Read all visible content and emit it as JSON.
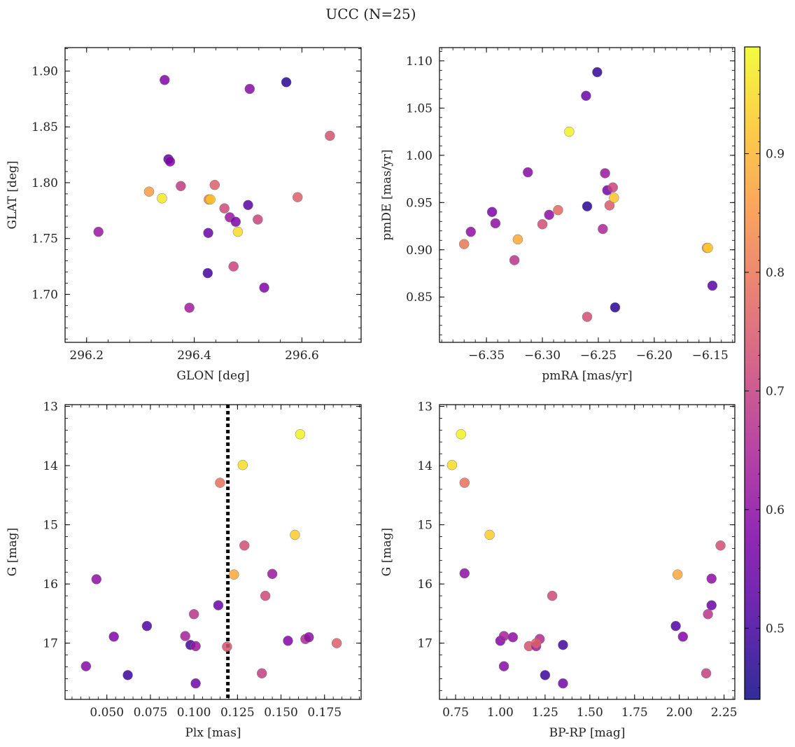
{
  "figure": {
    "title": "UCC (N=25)"
  },
  "colorbar": {
    "colormap": "plasma",
    "range": [
      0.44,
      0.99
    ],
    "ticks": [
      0.5,
      0.6,
      0.7,
      0.8,
      0.9
    ],
    "tick_labels": [
      "0.5",
      "0.6",
      "0.7",
      "0.8",
      "0.9"
    ]
  },
  "chart_data": [
    {
      "type": "scatter",
      "xlabel": "GLON [deg]",
      "ylabel": "GLAT [deg]",
      "xlim": [
        296.16,
        296.71
      ],
      "ylim": [
        1.657,
        1.921
      ],
      "xticks": [
        296.2,
        296.4,
        296.6
      ],
      "xtick_labels": [
        "296.2",
        "296.4",
        "296.6"
      ],
      "yticks": [
        1.7,
        1.75,
        1.8,
        1.85,
        1.9
      ],
      "ytick_labels": [
        "1.70",
        "1.75",
        "1.80",
        "1.85",
        "1.90"
      ],
      "y_inverted": false,
      "points": [
        {
          "x": 296.222,
          "y": 1.756,
          "c": 0.62
        },
        {
          "x": 296.345,
          "y": 1.892,
          "c": 0.58
        },
        {
          "x": 296.352,
          "y": 1.821,
          "c": 0.53
        },
        {
          "x": 296.355,
          "y": 1.819,
          "c": 0.58
        },
        {
          "x": 296.316,
          "y": 1.792,
          "c": 0.86
        },
        {
          "x": 296.34,
          "y": 1.786,
          "c": 0.97
        },
        {
          "x": 296.375,
          "y": 1.797,
          "c": 0.69
        },
        {
          "x": 296.427,
          "y": 1.785,
          "c": 0.82
        },
        {
          "x": 296.43,
          "y": 1.785,
          "c": 0.92
        },
        {
          "x": 296.438,
          "y": 1.798,
          "c": 0.76
        },
        {
          "x": 296.456,
          "y": 1.777,
          "c": 0.72
        },
        {
          "x": 296.466,
          "y": 1.769,
          "c": 0.62
        },
        {
          "x": 296.477,
          "y": 1.765,
          "c": 0.57
        },
        {
          "x": 296.481,
          "y": 1.756,
          "c": 0.95
        },
        {
          "x": 296.426,
          "y": 1.755,
          "c": 0.55
        },
        {
          "x": 296.425,
          "y": 1.719,
          "c": 0.5
        },
        {
          "x": 296.391,
          "y": 1.688,
          "c": 0.63
        },
        {
          "x": 296.473,
          "y": 1.725,
          "c": 0.71
        },
        {
          "x": 296.5,
          "y": 1.78,
          "c": 0.53
        },
        {
          "x": 296.503,
          "y": 1.884,
          "c": 0.59
        },
        {
          "x": 296.518,
          "y": 1.767,
          "c": 0.71
        },
        {
          "x": 296.53,
          "y": 1.706,
          "c": 0.58
        },
        {
          "x": 296.571,
          "y": 1.89,
          "c": 0.47
        },
        {
          "x": 296.592,
          "y": 1.787,
          "c": 0.76
        },
        {
          "x": 296.652,
          "y": 1.842,
          "c": 0.74
        }
      ]
    },
    {
      "type": "scatter",
      "xlabel": "pmRA [mas/yr]",
      "ylabel": "pmDE [mas/yr]",
      "xlim": [
        -6.392,
        -6.128
      ],
      "ylim": [
        0.802,
        1.114
      ],
      "xticks": [
        -6.35,
        -6.3,
        -6.25,
        -6.2,
        -6.15
      ],
      "xtick_labels": [
        "−6.35",
        "−6.30",
        "−6.25",
        "−6.20",
        "−6.15"
      ],
      "yticks": [
        0.85,
        0.9,
        0.95,
        1.0,
        1.05,
        1.1
      ],
      "ytick_labels": [
        "0.85",
        "0.90",
        "0.95",
        "1.00",
        "1.05",
        "1.10"
      ],
      "y_inverted": false,
      "points": [
        {
          "x": -6.37,
          "y": 0.906,
          "c": 0.8
        },
        {
          "x": -6.364,
          "y": 0.919,
          "c": 0.6
        },
        {
          "x": -6.345,
          "y": 0.94,
          "c": 0.57
        },
        {
          "x": -6.342,
          "y": 0.928,
          "c": 0.6
        },
        {
          "x": -6.325,
          "y": 0.889,
          "c": 0.68
        },
        {
          "x": -6.322,
          "y": 0.911,
          "c": 0.88
        },
        {
          "x": -6.313,
          "y": 0.982,
          "c": 0.59
        },
        {
          "x": -6.3,
          "y": 0.927,
          "c": 0.73
        },
        {
          "x": -6.294,
          "y": 0.937,
          "c": 0.6
        },
        {
          "x": -6.286,
          "y": 0.942,
          "c": 0.78
        },
        {
          "x": -6.276,
          "y": 1.025,
          "c": 0.98
        },
        {
          "x": -6.261,
          "y": 1.063,
          "c": 0.55
        },
        {
          "x": -6.26,
          "y": 0.946,
          "c": 0.47
        },
        {
          "x": -6.251,
          "y": 1.088,
          "c": 0.48
        },
        {
          "x": -6.246,
          "y": 0.922,
          "c": 0.65
        },
        {
          "x": -6.244,
          "y": 0.981,
          "c": 0.62
        },
        {
          "x": -6.242,
          "y": 0.963,
          "c": 0.56
        },
        {
          "x": -6.24,
          "y": 0.947,
          "c": 0.75
        },
        {
          "x": -6.237,
          "y": 0.966,
          "c": 0.71
        },
        {
          "x": -6.236,
          "y": 0.955,
          "c": 0.92
        },
        {
          "x": -6.235,
          "y": 0.839,
          "c": 0.47
        },
        {
          "x": -6.26,
          "y": 0.829,
          "c": 0.73
        },
        {
          "x": -6.153,
          "y": 0.902,
          "c": 0.86
        },
        {
          "x": -6.152,
          "y": 0.902,
          "c": 0.93
        },
        {
          "x": -6.148,
          "y": 0.862,
          "c": 0.53
        }
      ]
    },
    {
      "type": "scatter",
      "xlabel": "Plx [mas]",
      "ylabel": "G [mag]",
      "xlim": [
        0.026,
        0.196
      ],
      "ylim": [
        17.95,
        12.97
      ],
      "xticks": [
        0.025,
        0.05,
        0.075,
        0.1,
        0.125,
        0.15,
        0.175
      ],
      "xtick_labels": [
        "0.025",
        "0.050",
        "0.075",
        "0.100",
        "0.125",
        "0.150",
        "0.175"
      ],
      "yticks": [
        13,
        14,
        15,
        16,
        17
      ],
      "ytick_labels": [
        "13",
        "14",
        "15",
        "16",
        "17"
      ],
      "y_inverted": true,
      "vline": {
        "x": 0.1195,
        "style": "dotted",
        "color": "#000000"
      },
      "points": [
        {
          "x": 0.161,
          "y": 13.47,
          "c": 0.98
        },
        {
          "x": 0.128,
          "y": 13.99,
          "c": 0.95
        },
        {
          "x": 0.115,
          "y": 14.29,
          "c": 0.79
        },
        {
          "x": 0.158,
          "y": 15.17,
          "c": 0.93
        },
        {
          "x": 0.129,
          "y": 15.35,
          "c": 0.73
        },
        {
          "x": 0.123,
          "y": 15.84,
          "c": 0.88
        },
        {
          "x": 0.145,
          "y": 15.83,
          "c": 0.62
        },
        {
          "x": 0.044,
          "y": 15.92,
          "c": 0.6
        },
        {
          "x": 0.141,
          "y": 16.2,
          "c": 0.72
        },
        {
          "x": 0.114,
          "y": 16.36,
          "c": 0.55
        },
        {
          "x": 0.1,
          "y": 16.51,
          "c": 0.68
        },
        {
          "x": 0.073,
          "y": 16.71,
          "c": 0.51
        },
        {
          "x": 0.054,
          "y": 16.89,
          "c": 0.58
        },
        {
          "x": 0.095,
          "y": 16.88,
          "c": 0.64
        },
        {
          "x": 0.154,
          "y": 16.96,
          "c": 0.58
        },
        {
          "x": 0.164,
          "y": 16.93,
          "c": 0.66
        },
        {
          "x": 0.166,
          "y": 16.9,
          "c": 0.6
        },
        {
          "x": 0.182,
          "y": 17.0,
          "c": 0.76
        },
        {
          "x": 0.098,
          "y": 17.03,
          "c": 0.5
        },
        {
          "x": 0.101,
          "y": 17.05,
          "c": 0.62
        },
        {
          "x": 0.119,
          "y": 17.06,
          "c": 0.74
        },
        {
          "x": 0.038,
          "y": 17.39,
          "c": 0.59
        },
        {
          "x": 0.062,
          "y": 17.54,
          "c": 0.49
        },
        {
          "x": 0.139,
          "y": 17.51,
          "c": 0.7
        },
        {
          "x": 0.101,
          "y": 17.68,
          "c": 0.56
        }
      ]
    },
    {
      "type": "scatter",
      "xlabel": "BP-RP [mag]",
      "ylabel": "G [mag]",
      "xlim": [
        0.66,
        2.31
      ],
      "ylim": [
        17.95,
        12.97
      ],
      "xticks": [
        0.75,
        1.0,
        1.25,
        1.5,
        1.75,
        2.0,
        2.25
      ],
      "xtick_labels": [
        "0.75",
        "1.00",
        "1.25",
        "1.50",
        "1.75",
        "2.00",
        "2.25"
      ],
      "yticks": [
        13,
        14,
        15,
        16,
        17
      ],
      "ytick_labels": [
        "13",
        "14",
        "15",
        "16",
        "17"
      ],
      "y_inverted": true,
      "points": [
        {
          "x": 0.78,
          "y": 13.47,
          "c": 0.98
        },
        {
          "x": 0.73,
          "y": 13.99,
          "c": 0.95
        },
        {
          "x": 0.8,
          "y": 14.29,
          "c": 0.79
        },
        {
          "x": 0.94,
          "y": 15.17,
          "c": 0.93
        },
        {
          "x": 0.8,
          "y": 15.82,
          "c": 0.6
        },
        {
          "x": 2.23,
          "y": 15.35,
          "c": 0.73
        },
        {
          "x": 1.99,
          "y": 15.84,
          "c": 0.88
        },
        {
          "x": 2.18,
          "y": 15.91,
          "c": 0.6
        },
        {
          "x": 1.29,
          "y": 16.2,
          "c": 0.72
        },
        {
          "x": 2.18,
          "y": 16.36,
          "c": 0.55
        },
        {
          "x": 2.16,
          "y": 16.51,
          "c": 0.68
        },
        {
          "x": 1.98,
          "y": 16.71,
          "c": 0.51
        },
        {
          "x": 2.02,
          "y": 16.89,
          "c": 0.58
        },
        {
          "x": 1.0,
          "y": 16.96,
          "c": 0.58
        },
        {
          "x": 1.02,
          "y": 16.88,
          "c": 0.64
        },
        {
          "x": 1.07,
          "y": 16.9,
          "c": 0.6
        },
        {
          "x": 1.22,
          "y": 16.93,
          "c": 0.66
        },
        {
          "x": 1.16,
          "y": 17.05,
          "c": 0.74
        },
        {
          "x": 1.2,
          "y": 17.05,
          "c": 0.62
        },
        {
          "x": 1.2,
          "y": 17.0,
          "c": 0.76
        },
        {
          "x": 1.35,
          "y": 17.03,
          "c": 0.5
        },
        {
          "x": 1.02,
          "y": 17.39,
          "c": 0.59
        },
        {
          "x": 1.25,
          "y": 17.54,
          "c": 0.49
        },
        {
          "x": 2.15,
          "y": 17.51,
          "c": 0.7
        },
        {
          "x": 1.35,
          "y": 17.68,
          "c": 0.56
        }
      ]
    }
  ]
}
